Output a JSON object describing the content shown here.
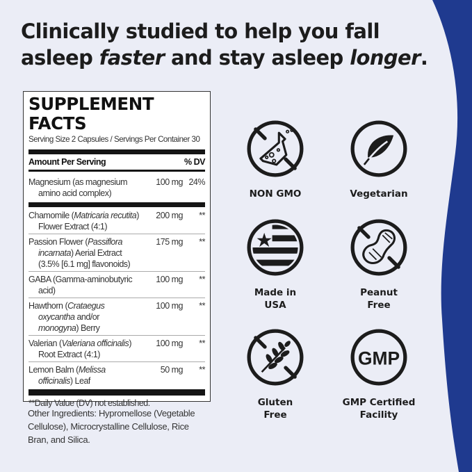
{
  "colors": {
    "background": "#ebedf6",
    "accent_blue": "#1f3a8f",
    "text": "#1c1c1c"
  },
  "headline": {
    "line1": "Clinically studied to help you fall",
    "line2_a": "asleep ",
    "line2_b": "faster",
    "line2_c": " and stay asleep ",
    "line2_d": "longer",
    "line2_e": "."
  },
  "facts": {
    "title": "SUPPLEMENT FACTS",
    "serving": "Serving Size 2 Capsules / Servings Per Container 30",
    "header_amount": "Amount Per Serving",
    "header_dv": "% DV",
    "vitamins": [
      {
        "pre": "Magnesium (as magnesium amino acid complex)",
        "ital": "",
        "post": "",
        "amount": "100 mg",
        "dv": "24%"
      }
    ],
    "blend": [
      {
        "pre": "Chamomile (",
        "ital": "Matricaria recutita",
        "post": ") Flower Extract (4:1)",
        "amount": "200 mg",
        "dv": "**"
      },
      {
        "pre": "Passion Flower (",
        "ital": "Passiflora incarnata",
        "post": ") Aerial Extract (3.5% [6.1 mg] flavonoids)",
        "amount": "175 mg",
        "dv": "**"
      },
      {
        "pre": "GABA (Gamma-aminobutyric acid)",
        "ital": "",
        "post": "",
        "amount": "100 mg",
        "dv": "**"
      },
      {
        "pre": "Hawthorn (",
        "ital": "Crataegus oxycantha",
        "post": " and/or ",
        "ital2": "monogyna",
        "post2": ") Berry",
        "amount": "100 mg",
        "dv": "**"
      },
      {
        "pre": "Valerian (",
        "ital": "Valeriana officinalis",
        "post": ") Root Extract (4:1)",
        "amount": "100 mg",
        "dv": "**"
      },
      {
        "pre": "Lemon Balm (",
        "ital": "Melissa officinalis",
        "post": ") Leaf",
        "amount": "50 mg",
        "dv": "**"
      }
    ],
    "footnote": "**Daily Value (DV) not established."
  },
  "other_ingredients": "Other Ingredients: Hypromellose (Vegetable Cellulose), Microcrystalline Cellulose, Rice Bran, and Silica.",
  "badges": [
    {
      "icon": "no-flask-icon",
      "label": "NON GMO"
    },
    {
      "icon": "leaf-icon",
      "label": "Vegetarian"
    },
    {
      "icon": "usa-flag-icon",
      "label": "Made in USA"
    },
    {
      "icon": "no-peanut-icon",
      "label": "Peanut Free"
    },
    {
      "icon": "no-wheat-icon",
      "label": "Gluten Free"
    },
    {
      "icon": "gmp-icon",
      "label": "GMP Certified Facility",
      "icon_text": "GMP"
    }
  ]
}
